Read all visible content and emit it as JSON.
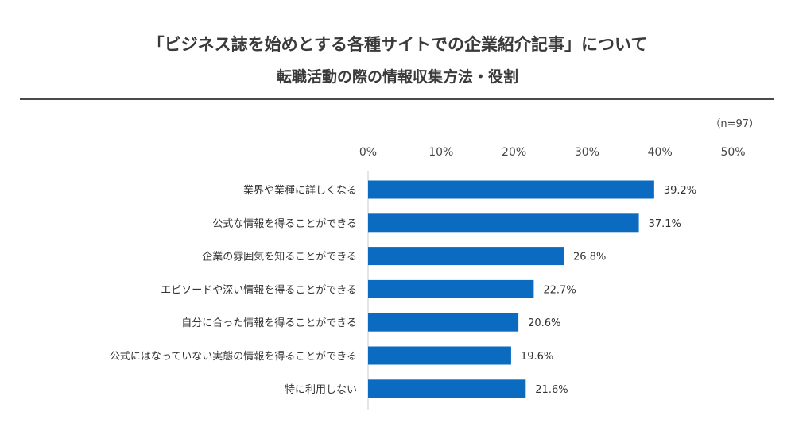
{
  "title_line1": "「ビジネス誌を始めとする各種サイトでの企業紹介記事」について",
  "title_line2": "転職活動の際の情報収集方法・役割",
  "sample_note": "（n=97）",
  "chart_data": {
    "type": "bar",
    "orientation": "horizontal",
    "categories": [
      "業界や業種に詳しくなる",
      "公式な情報を得ることができる",
      "企業の雰囲気を知ることができる",
      "エピソードや深い情報を得ることができる",
      "自分に合った情報を得ることができる",
      "公式にはなっていない実態の情報を得ることができる",
      "特に利用しない"
    ],
    "values": [
      39.2,
      37.1,
      26.8,
      22.7,
      20.6,
      19.6,
      21.6
    ],
    "value_labels": [
      "39.2%",
      "37.1%",
      "26.8%",
      "22.7%",
      "20.6%",
      "19.6%",
      "21.6%"
    ],
    "xlim": [
      0,
      50
    ],
    "xticks": [
      0,
      10,
      20,
      30,
      40,
      50
    ],
    "xtick_labels": [
      "0%",
      "10%",
      "20%",
      "30%",
      "40%",
      "50%"
    ],
    "axis_position": "top",
    "grid": false,
    "bar_color": "#0a6bc1"
  }
}
